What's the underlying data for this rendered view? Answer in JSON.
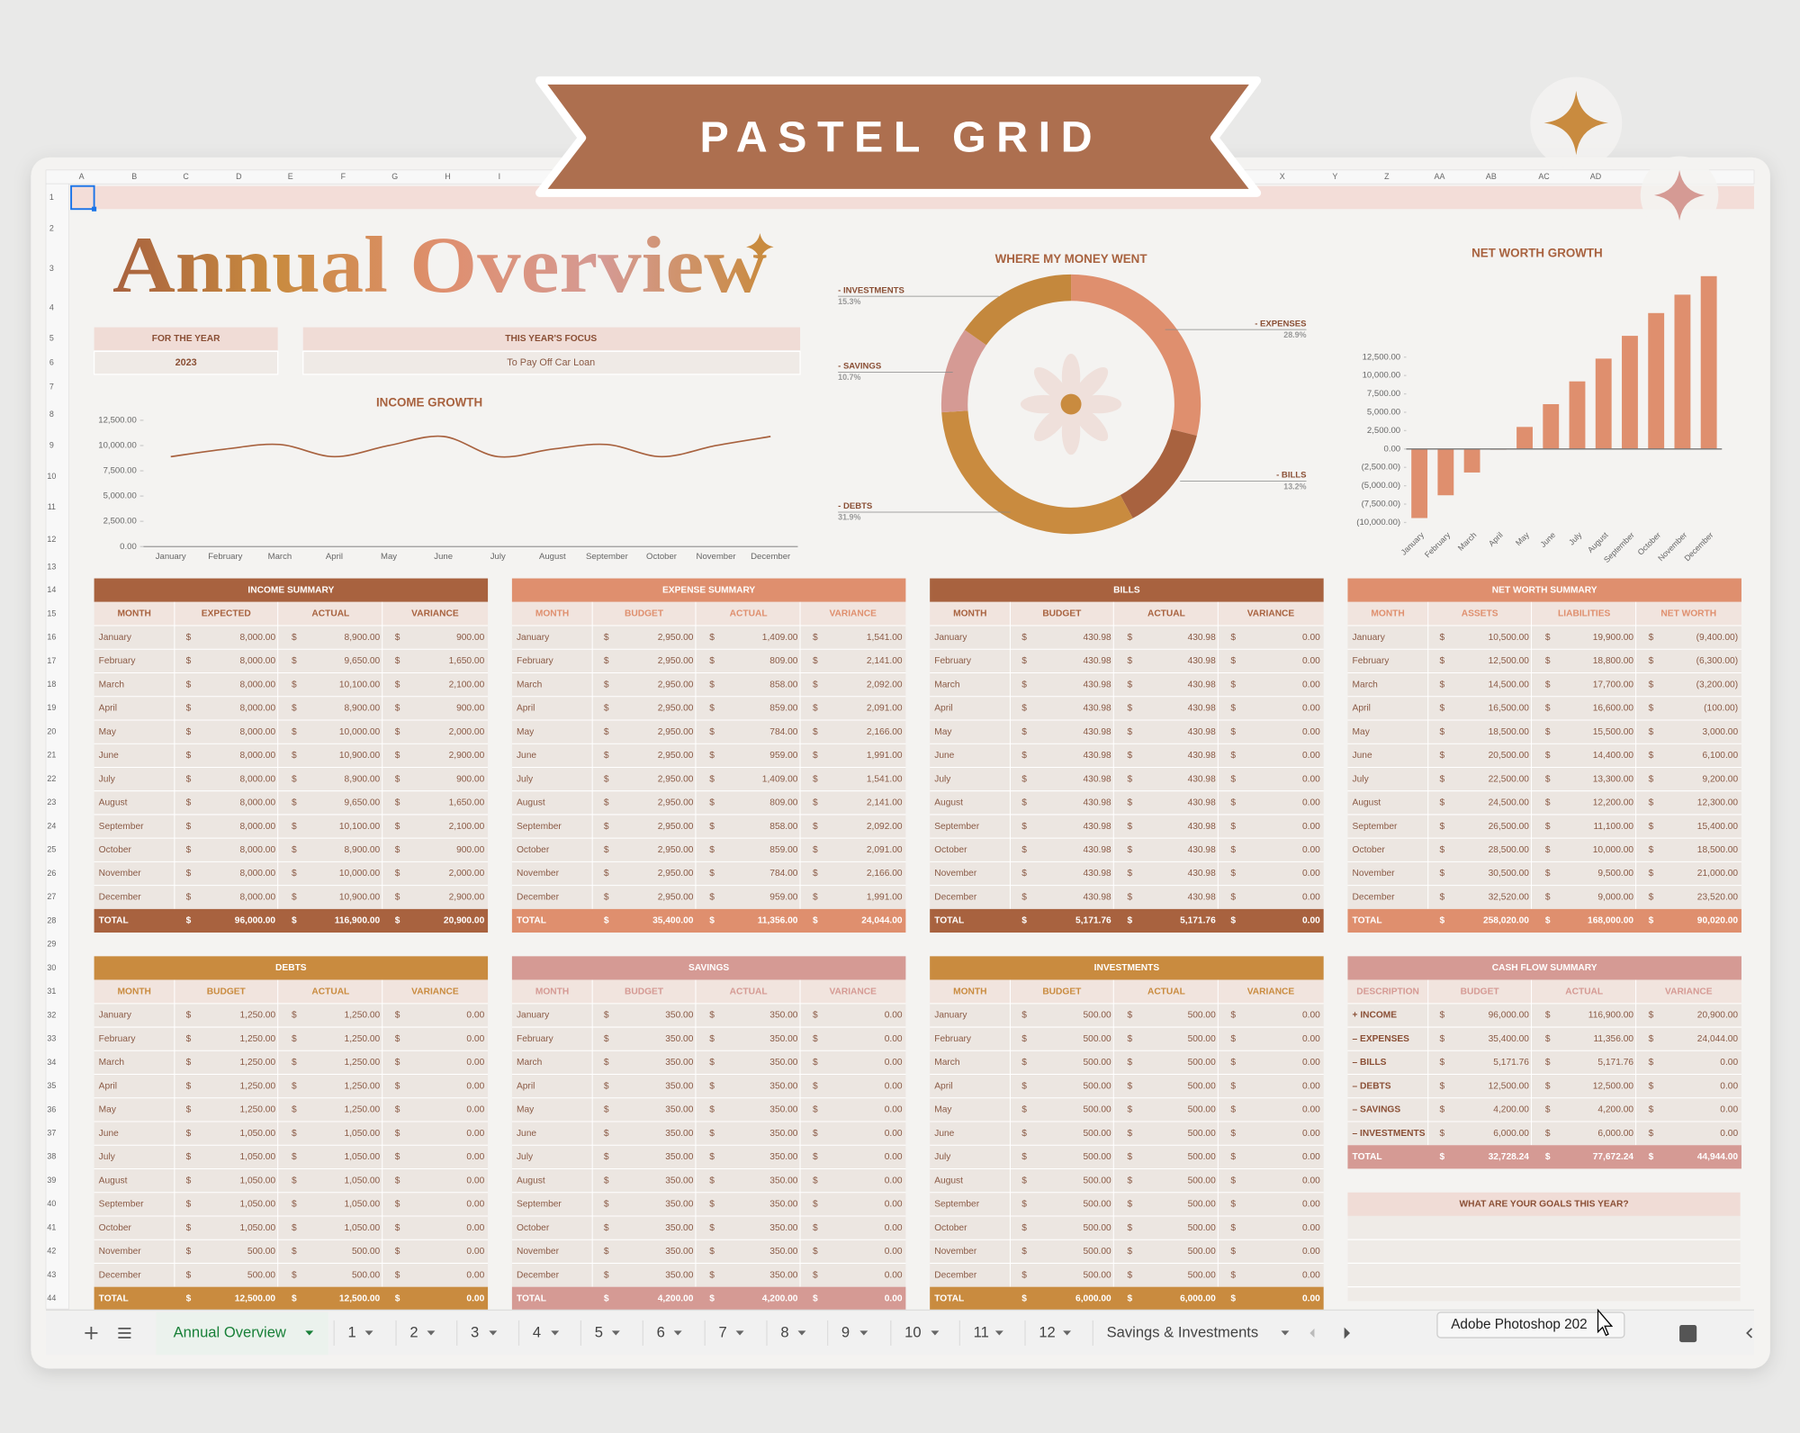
{
  "banner": "PASTEL GRID",
  "sheet": {
    "column_letters": [
      "A",
      "B",
      "C",
      "D",
      "E",
      "F",
      "G",
      "H",
      "I",
      "X",
      "Y",
      "Z",
      "AA",
      "AB",
      "AC",
      "AD"
    ],
    "row_numbers": [
      1,
      2,
      3,
      4,
      5,
      6,
      7,
      8,
      9,
      10,
      11,
      12,
      13,
      14,
      15,
      16,
      17,
      18,
      19,
      20,
      21,
      22,
      23,
      24,
      25,
      26,
      27,
      28,
      29,
      30,
      31,
      32,
      33,
      34,
      35,
      36,
      37,
      38,
      39,
      40,
      41,
      42,
      43,
      44
    ]
  },
  "header": {
    "title": "Annual Overview",
    "year_label": "FOR THE YEAR",
    "year": "2023",
    "focus_label": "THIS YEAR'S FOCUS",
    "focus": "To Pay Off Car Loan"
  },
  "chart_data": [
    {
      "type": "line",
      "title": "INCOME GROWTH",
      "categories": [
        "January",
        "February",
        "March",
        "April",
        "May",
        "June",
        "July",
        "August",
        "September",
        "October",
        "November",
        "December"
      ],
      "values": [
        8900,
        9650,
        10100,
        8900,
        10000,
        10900,
        8900,
        9650,
        10100,
        8900,
        10000,
        10900
      ],
      "color": "#a8623f",
      "ylim": [
        0,
        12500
      ],
      "yticks": [
        {
          "value": 0,
          "label": "0.00"
        },
        {
          "value": 2500,
          "label": "2,500.00"
        },
        {
          "value": 5000,
          "label": "5,000.00"
        },
        {
          "value": 7500,
          "label": "7,500.00"
        },
        {
          "value": 10000,
          "label": "10,000.00"
        },
        {
          "value": 12500,
          "label": "12,500.00"
        }
      ]
    },
    {
      "type": "pie",
      "title": "WHERE MY MONEY WENT",
      "categories": [
        "- EXPENSES",
        "- BILLS",
        "- DEBTS",
        "- SAVINGS",
        "- INVESTMENTS"
      ],
      "values": [
        28.9,
        13.2,
        31.9,
        10.7,
        15.3
      ],
      "value_labels": [
        "28.9%",
        "13.2%",
        "31.9%",
        "10.7%",
        "15.3%"
      ],
      "colors": [
        "#df8f6e",
        "#a8623f",
        "#c98b3f",
        "#d59a94",
        "#c4883d"
      ]
    },
    {
      "type": "bar",
      "title": "NET WORTH GROWTH",
      "categories": [
        "January",
        "February",
        "March",
        "April",
        "May",
        "June",
        "July",
        "August",
        "September",
        "October",
        "November",
        "December"
      ],
      "values": [
        -9400,
        -6300,
        -3200,
        -100,
        3000,
        6100,
        9200,
        12300,
        15400,
        18500,
        21000,
        23520
      ],
      "color": "#df8f6e",
      "ylim": [
        -10000,
        25000
      ],
      "yticks": [
        {
          "value": -10000,
          "label": "(10,000.00)"
        },
        {
          "value": -7500,
          "label": "(7,500.00)"
        },
        {
          "value": -5000,
          "label": "(5,000.00)"
        },
        {
          "value": -2500,
          "label": "(2,500.00)"
        },
        {
          "value": 0,
          "label": "0.00"
        },
        {
          "value": 2500,
          "label": "2,500.00"
        },
        {
          "value": 5000,
          "label": "5,000.00"
        },
        {
          "value": 7500,
          "label": "7,500.00"
        },
        {
          "value": 10000,
          "label": "10,000.00"
        },
        {
          "value": 12500,
          "label": "12,500.00"
        }
      ]
    }
  ],
  "currency": "$",
  "tables": [
    {
      "title": "INCOME SUMMARY",
      "columns": [
        "MONTH",
        "EXPECTED",
        "ACTUAL",
        "VARIANCE"
      ],
      "rows": [
        [
          "January",
          "8,000.00",
          "8,900.00",
          "900.00"
        ],
        [
          "February",
          "8,000.00",
          "9,650.00",
          "1,650.00"
        ],
        [
          "March",
          "8,000.00",
          "10,100.00",
          "2,100.00"
        ],
        [
          "April",
          "8,000.00",
          "8,900.00",
          "900.00"
        ],
        [
          "May",
          "8,000.00",
          "10,000.00",
          "2,000.00"
        ],
        [
          "June",
          "8,000.00",
          "10,900.00",
          "2,900.00"
        ],
        [
          "July",
          "8,000.00",
          "8,900.00",
          "900.00"
        ],
        [
          "August",
          "8,000.00",
          "9,650.00",
          "1,650.00"
        ],
        [
          "September",
          "8,000.00",
          "10,100.00",
          "2,100.00"
        ],
        [
          "October",
          "8,000.00",
          "8,900.00",
          "900.00"
        ],
        [
          "November",
          "8,000.00",
          "10,000.00",
          "2,000.00"
        ],
        [
          "December",
          "8,000.00",
          "10,900.00",
          "2,900.00"
        ]
      ],
      "total": [
        "TOTAL",
        "96,000.00",
        "116,900.00",
        "20,900.00"
      ]
    },
    {
      "title": "EXPENSE SUMMARY",
      "columns": [
        "MONTH",
        "BUDGET",
        "ACTUAL",
        "VARIANCE"
      ],
      "rows": [
        [
          "January",
          "2,950.00",
          "1,409.00",
          "1,541.00"
        ],
        [
          "February",
          "2,950.00",
          "809.00",
          "2,141.00"
        ],
        [
          "March",
          "2,950.00",
          "858.00",
          "2,092.00"
        ],
        [
          "April",
          "2,950.00",
          "859.00",
          "2,091.00"
        ],
        [
          "May",
          "2,950.00",
          "784.00",
          "2,166.00"
        ],
        [
          "June",
          "2,950.00",
          "959.00",
          "1,991.00"
        ],
        [
          "July",
          "2,950.00",
          "1,409.00",
          "1,541.00"
        ],
        [
          "August",
          "2,950.00",
          "809.00",
          "2,141.00"
        ],
        [
          "September",
          "2,950.00",
          "858.00",
          "2,092.00"
        ],
        [
          "October",
          "2,950.00",
          "859.00",
          "2,091.00"
        ],
        [
          "November",
          "2,950.00",
          "784.00",
          "2,166.00"
        ],
        [
          "December",
          "2,950.00",
          "959.00",
          "1,991.00"
        ]
      ],
      "total": [
        "TOTAL",
        "35,400.00",
        "11,356.00",
        "24,044.00"
      ]
    },
    {
      "title": "BILLS",
      "columns": [
        "MONTH",
        "BUDGET",
        "ACTUAL",
        "VARIANCE"
      ],
      "rows": [
        [
          "January",
          "430.98",
          "430.98",
          "0.00"
        ],
        [
          "February",
          "430.98",
          "430.98",
          "0.00"
        ],
        [
          "March",
          "430.98",
          "430.98",
          "0.00"
        ],
        [
          "April",
          "430.98",
          "430.98",
          "0.00"
        ],
        [
          "May",
          "430.98",
          "430.98",
          "0.00"
        ],
        [
          "June",
          "430.98",
          "430.98",
          "0.00"
        ],
        [
          "July",
          "430.98",
          "430.98",
          "0.00"
        ],
        [
          "August",
          "430.98",
          "430.98",
          "0.00"
        ],
        [
          "September",
          "430.98",
          "430.98",
          "0.00"
        ],
        [
          "October",
          "430.98",
          "430.98",
          "0.00"
        ],
        [
          "November",
          "430.98",
          "430.98",
          "0.00"
        ],
        [
          "December",
          "430.98",
          "430.98",
          "0.00"
        ]
      ],
      "total": [
        "TOTAL",
        "5,171.76",
        "5,171.76",
        "0.00"
      ]
    },
    {
      "title": "NET WORTH SUMMARY",
      "columns": [
        "MONTH",
        "ASSETS",
        "LIABILITIES",
        "NET WORTH"
      ],
      "rows": [
        [
          "January",
          "10,500.00",
          "19,900.00",
          "(9,400.00)"
        ],
        [
          "February",
          "12,500.00",
          "18,800.00",
          "(6,300.00)"
        ],
        [
          "March",
          "14,500.00",
          "17,700.00",
          "(3,200.00)"
        ],
        [
          "April",
          "16,500.00",
          "16,600.00",
          "(100.00)"
        ],
        [
          "May",
          "18,500.00",
          "15,500.00",
          "3,000.00"
        ],
        [
          "June",
          "20,500.00",
          "14,400.00",
          "6,100.00"
        ],
        [
          "July",
          "22,500.00",
          "13,300.00",
          "9,200.00"
        ],
        [
          "August",
          "24,500.00",
          "12,200.00",
          "12,300.00"
        ],
        [
          "September",
          "26,500.00",
          "11,100.00",
          "15,400.00"
        ],
        [
          "October",
          "28,500.00",
          "10,000.00",
          "18,500.00"
        ],
        [
          "November",
          "30,500.00",
          "9,500.00",
          "21,000.00"
        ],
        [
          "December",
          "32,520.00",
          "9,000.00",
          "23,520.00"
        ]
      ],
      "total": [
        "TOTAL",
        "258,020.00",
        "168,000.00",
        "90,020.00"
      ]
    },
    {
      "title": "DEBTS",
      "columns": [
        "MONTH",
        "BUDGET",
        "ACTUAL",
        "VARIANCE"
      ],
      "rows": [
        [
          "January",
          "1,250.00",
          "1,250.00",
          "0.00"
        ],
        [
          "February",
          "1,250.00",
          "1,250.00",
          "0.00"
        ],
        [
          "March",
          "1,250.00",
          "1,250.00",
          "0.00"
        ],
        [
          "April",
          "1,250.00",
          "1,250.00",
          "0.00"
        ],
        [
          "May",
          "1,250.00",
          "1,250.00",
          "0.00"
        ],
        [
          "June",
          "1,050.00",
          "1,050.00",
          "0.00"
        ],
        [
          "July",
          "1,050.00",
          "1,050.00",
          "0.00"
        ],
        [
          "August",
          "1,050.00",
          "1,050.00",
          "0.00"
        ],
        [
          "September",
          "1,050.00",
          "1,050.00",
          "0.00"
        ],
        [
          "October",
          "1,050.00",
          "1,050.00",
          "0.00"
        ],
        [
          "November",
          "500.00",
          "500.00",
          "0.00"
        ],
        [
          "December",
          "500.00",
          "500.00",
          "0.00"
        ]
      ],
      "total": [
        "TOTAL",
        "12,500.00",
        "12,500.00",
        "0.00"
      ]
    },
    {
      "title": "SAVINGS",
      "columns": [
        "MONTH",
        "BUDGET",
        "ACTUAL",
        "VARIANCE"
      ],
      "rows": [
        [
          "January",
          "350.00",
          "350.00",
          "0.00"
        ],
        [
          "February",
          "350.00",
          "350.00",
          "0.00"
        ],
        [
          "March",
          "350.00",
          "350.00",
          "0.00"
        ],
        [
          "April",
          "350.00",
          "350.00",
          "0.00"
        ],
        [
          "May",
          "350.00",
          "350.00",
          "0.00"
        ],
        [
          "June",
          "350.00",
          "350.00",
          "0.00"
        ],
        [
          "July",
          "350.00",
          "350.00",
          "0.00"
        ],
        [
          "August",
          "350.00",
          "350.00",
          "0.00"
        ],
        [
          "September",
          "350.00",
          "350.00",
          "0.00"
        ],
        [
          "October",
          "350.00",
          "350.00",
          "0.00"
        ],
        [
          "November",
          "350.00",
          "350.00",
          "0.00"
        ],
        [
          "December",
          "350.00",
          "350.00",
          "0.00"
        ]
      ],
      "total": [
        "TOTAL",
        "4,200.00",
        "4,200.00",
        "0.00"
      ]
    },
    {
      "title": "INVESTMENTS",
      "columns": [
        "MONTH",
        "BUDGET",
        "ACTUAL",
        "VARIANCE"
      ],
      "rows": [
        [
          "January",
          "500.00",
          "500.00",
          "0.00"
        ],
        [
          "February",
          "500.00",
          "500.00",
          "0.00"
        ],
        [
          "March",
          "500.00",
          "500.00",
          "0.00"
        ],
        [
          "April",
          "500.00",
          "500.00",
          "0.00"
        ],
        [
          "May",
          "500.00",
          "500.00",
          "0.00"
        ],
        [
          "June",
          "500.00",
          "500.00",
          "0.00"
        ],
        [
          "July",
          "500.00",
          "500.00",
          "0.00"
        ],
        [
          "August",
          "500.00",
          "500.00",
          "0.00"
        ],
        [
          "September",
          "500.00",
          "500.00",
          "0.00"
        ],
        [
          "October",
          "500.00",
          "500.00",
          "0.00"
        ],
        [
          "November",
          "500.00",
          "500.00",
          "0.00"
        ],
        [
          "December",
          "500.00",
          "500.00",
          "0.00"
        ]
      ],
      "total": [
        "TOTAL",
        "6,000.00",
        "6,000.00",
        "0.00"
      ]
    },
    {
      "title": "CASH FLOW SUMMARY",
      "columns": [
        "DESCRIPTION",
        "BUDGET",
        "ACTUAL",
        "VARIANCE"
      ],
      "rows": [
        [
          "+ INCOME",
          "96,000.00",
          "116,900.00",
          "20,900.00"
        ],
        [
          "– EXPENSES",
          "35,400.00",
          "11,356.00",
          "24,044.00"
        ],
        [
          "– BILLS",
          "5,171.76",
          "5,171.76",
          "0.00"
        ],
        [
          "– DEBTS",
          "12,500.00",
          "12,500.00",
          "0.00"
        ],
        [
          "– SAVINGS",
          "4,200.00",
          "4,200.00",
          "0.00"
        ],
        [
          "– INVESTMENTS",
          "6,000.00",
          "6,000.00",
          "0.00"
        ]
      ],
      "total": [
        "TOTAL",
        "32,728.24",
        "77,672.24",
        "44,944.00"
      ]
    }
  ],
  "goals": "WHAT ARE YOUR GOALS THIS YEAR?",
  "tabs": {
    "active": "Annual Overview",
    "others": [
      "1",
      "2",
      "3",
      "4",
      "5",
      "6",
      "7",
      "8",
      "9",
      "10",
      "11",
      "12",
      "Savings & Investments"
    ]
  },
  "tooltip": "Adobe Photoshop 202"
}
